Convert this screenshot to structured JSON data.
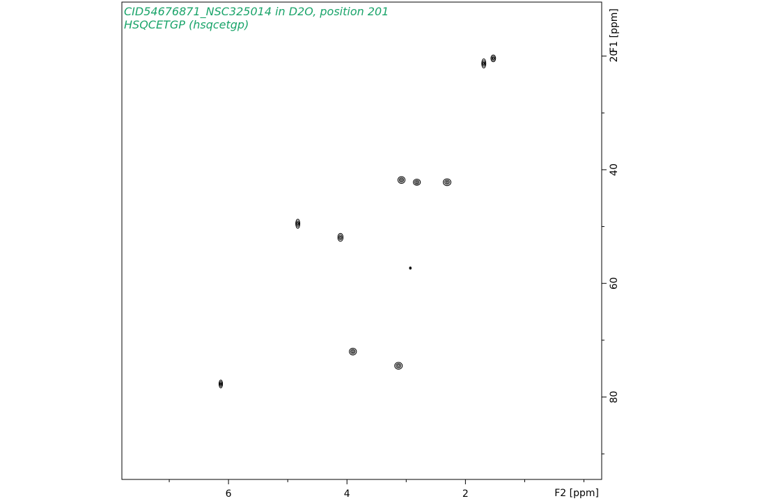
{
  "chart_data": {
    "type": "heatmap",
    "subtype": "2D NMR contour plot (HSQC)",
    "title_lines": [
      "CID54676871_NSC325014 in D2O, position 201",
      "HSQCETGP (hsqcetgp)"
    ],
    "title_color": "#1aa46a",
    "contour_color": "#000000",
    "x_axis": {
      "label": "F2 [ppm]",
      "range": [
        7.8,
        -0.3
      ],
      "reversed": true,
      "major_ticks": [
        6,
        4,
        2
      ],
      "tick_labels": [
        "6",
        "4",
        "2"
      ],
      "minor_ticks": [
        7,
        5,
        3,
        1,
        0
      ]
    },
    "y_axis": {
      "label": "F1 [ppm]",
      "position": "right",
      "range": [
        10.5,
        94.5
      ],
      "reversed": true,
      "major_ticks": [
        20,
        40,
        60,
        80
      ],
      "tick_labels": [
        "20",
        "40",
        "60",
        "80"
      ],
      "minor_ticks": [
        10,
        30,
        50,
        70,
        90
      ]
    },
    "peaks": [
      {
        "x": 1.69,
        "y": 21.3,
        "w": 0.07,
        "h": 1.6
      },
      {
        "x": 1.53,
        "y": 20.4,
        "w": 0.08,
        "h": 1.2
      },
      {
        "x": 3.08,
        "y": 41.8,
        "w": 0.12,
        "h": 1.2
      },
      {
        "x": 2.82,
        "y": 42.2,
        "w": 0.12,
        "h": 1.1
      },
      {
        "x": 2.31,
        "y": 42.2,
        "w": 0.13,
        "h": 1.2
      },
      {
        "x": 4.83,
        "y": 49.5,
        "w": 0.07,
        "h": 1.6
      },
      {
        "x": 4.11,
        "y": 51.9,
        "w": 0.09,
        "h": 1.4
      },
      {
        "x": 2.93,
        "y": 57.3,
        "w": 0.03,
        "h": 0.4
      },
      {
        "x": 3.9,
        "y": 72.0,
        "w": 0.12,
        "h": 1.2
      },
      {
        "x": 3.13,
        "y": 74.5,
        "w": 0.13,
        "h": 1.2
      },
      {
        "x": 6.13,
        "y": 77.7,
        "w": 0.06,
        "h": 1.4
      }
    ],
    "grid": false,
    "legend": "none"
  }
}
